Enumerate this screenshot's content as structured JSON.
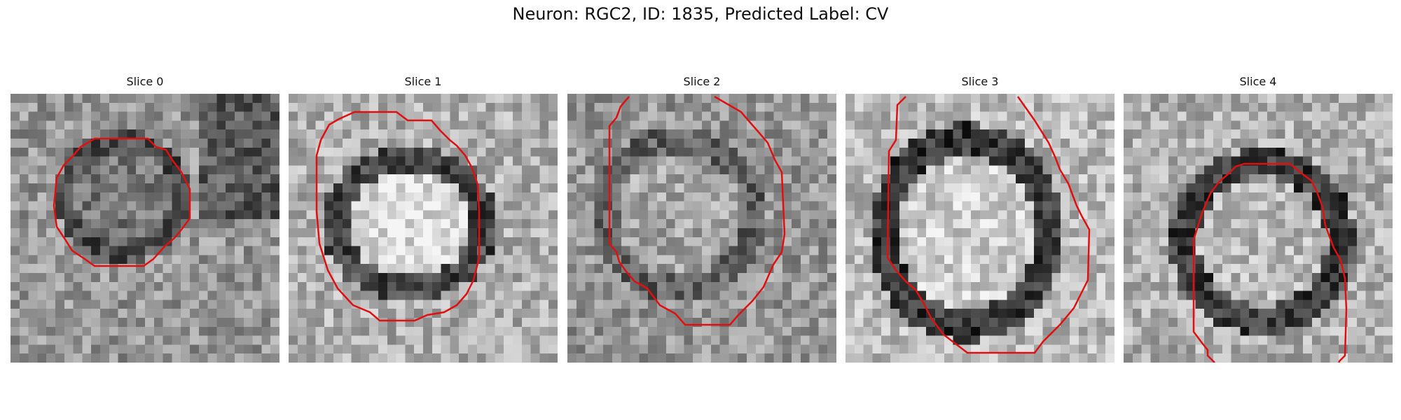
{
  "figure": {
    "title": "Neuron: RGC2, ID: 1835, Predicted Label: CV",
    "slices": [
      {
        "label": "Slice 0"
      },
      {
        "label": "Slice 1"
      },
      {
        "label": "Slice 2"
      },
      {
        "label": "Slice 3"
      },
      {
        "label": "Slice 4"
      }
    ],
    "contour_color": "#e01010",
    "colormap": "gray"
  }
}
